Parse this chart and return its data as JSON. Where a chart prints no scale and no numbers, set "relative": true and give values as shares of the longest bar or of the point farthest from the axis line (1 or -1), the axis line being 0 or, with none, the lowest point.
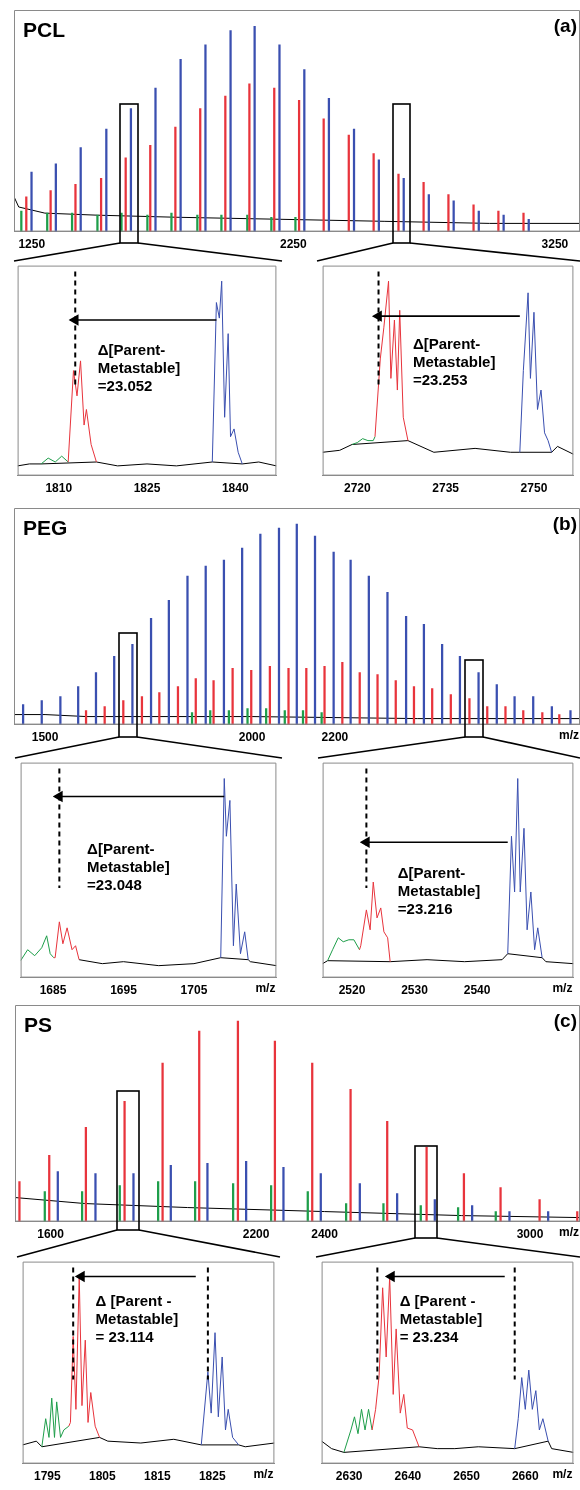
{
  "chart_data": [
    {
      "type": "bar",
      "relative": true,
      "title": "PCL",
      "annotations": [
        "(a)"
      ],
      "xlim": [
        1182,
        3346
      ],
      "xticks": [
        1250,
        2250,
        3250
      ],
      "series": [
        {
          "type": "bar",
          "color": "#3a4fb0",
          "x": [
            1249,
            1342,
            1437,
            1535,
            1629,
            1723,
            1819,
            1914,
            2010,
            2102,
            2197,
            2292,
            2386,
            2482,
            2577,
            2672,
            2768,
            2863,
            2959,
            3054,
            3150
          ],
          "values": [
            0.29,
            0.33,
            0.41,
            0.5,
            0.6,
            0.7,
            0.84,
            0.91,
            0.98,
            1,
            0.91,
            0.79,
            0.65,
            0.5,
            0.35,
            0.26,
            0.18,
            0.15,
            0.1,
            0.08,
            0.06
          ]
        },
        {
          "type": "bar",
          "color": "#e8343c",
          "x": [
            1229,
            1322,
            1417,
            1515,
            1609,
            1703,
            1799,
            1894,
            1990,
            2082,
            2177,
            2272,
            2366,
            2462,
            2557,
            2652,
            2748,
            2843,
            2939,
            3034,
            3130
          ],
          "values": [
            0.17,
            0.2,
            0.23,
            0.26,
            0.36,
            0.42,
            0.51,
            0.6,
            0.66,
            0.72,
            0.7,
            0.64,
            0.55,
            0.47,
            0.38,
            0.28,
            0.24,
            0.18,
            0.13,
            0.1,
            0.09
          ]
        },
        {
          "type": "bar",
          "color": "#1e9e4a",
          "x": [
            1210,
            1309,
            1404,
            1501,
            1593,
            1692,
            1784,
            1883,
            1975,
            2074,
            2166,
            2258
          ],
          "values": [
            0.1,
            0.09,
            0.09,
            0.08,
            0.09,
            0.08,
            0.09,
            0.08,
            0.08,
            0.08,
            0.07,
            0.07
          ]
        },
        {
          "type": "line",
          "color": "#000000",
          "x": [
            1182,
            1200,
            1300,
            1500,
            1800,
            2200,
            2600,
            3000,
            3346
          ],
          "values": [
            0.17,
            0.12,
            0.09,
            0.08,
            0.07,
            0.06,
            0.05,
            0.04,
            0.04
          ]
        }
      ]
    },
    {
      "type": "line",
      "relative": true,
      "xlim": [
        1803,
        1847
      ],
      "xticks": [
        1810,
        1825,
        1840
      ],
      "ref_lines": [
        {
          "axis": "x",
          "value": 1812.8,
          "line_style": "dashed"
        }
      ],
      "annotations": [
        "Δ[Parent-\nMetastable]\n=23.052"
      ],
      "series": [
        {
          "type": "line",
          "color": "#000000",
          "marker": "triangle",
          "x": [
            1836.8,
            1812.8
          ],
          "values": [
            0.8,
            0.8
          ]
        },
        {
          "color": "#3a4fb0",
          "x": [
            1836.1,
            1836.8,
            1837.3,
            1837.7,
            1838.2,
            1838.8,
            1839.2,
            1839.8,
            1840.5,
            1841.2
          ],
          "values": [
            0.07,
            0.89,
            0.81,
            1,
            0.3,
            0.73,
            0.2,
            0.24,
            0.12,
            0.06
          ]
        },
        {
          "color": "#e8343c",
          "x": [
            1811.6,
            1812.5,
            1813.1,
            1813.7,
            1814.3,
            1814.7,
            1815.5,
            1816.4
          ],
          "values": [
            0.07,
            0.54,
            0.41,
            0.59,
            0.26,
            0.34,
            0.16,
            0.07
          ]
        },
        {
          "color": "#1e9e4a",
          "x": [
            1807,
            1808.2,
            1809.4,
            1810.5,
            1811.6
          ],
          "values": [
            0.06,
            0.09,
            0.07,
            0.1,
            0.07
          ]
        },
        {
          "color": "#000000",
          "x": [
            1803,
            1805,
            1807,
            1816.4,
            1820,
            1825,
            1830,
            1836.1,
            1841.2,
            1844,
            1847
          ],
          "values": [
            0.05,
            0.06,
            0.06,
            0.07,
            0.05,
            0.06,
            0.05,
            0.07,
            0.06,
            0.07,
            0.05
          ]
        }
      ]
    },
    {
      "type": "line",
      "relative": true,
      "xlim": [
        2714.1,
        2756.7
      ],
      "xticks": [
        2720,
        2735,
        2750
      ],
      "ref_lines": [
        {
          "axis": "x",
          "value": 2723.6,
          "line_style": "dashed"
        }
      ],
      "annotations": [
        "Δ[Parent-\nMetastable]\n=23.253"
      ],
      "series": [
        {
          "type": "line",
          "color": "#000000",
          "marker": "triangle",
          "x": [
            2747.6,
            2723.6
          ],
          "values": [
            0.82,
            0.82
          ]
        },
        {
          "color": "#3a4fb0",
          "x": [
            2747.6,
            2748.2,
            2749,
            2749.4,
            2750,
            2750.6,
            2751.2,
            2751.8,
            2752.4,
            2753
          ],
          "values": [
            0.12,
            0.54,
            0.94,
            0.5,
            0.84,
            0.34,
            0.44,
            0.22,
            0.18,
            0.12
          ]
        },
        {
          "color": "#e8343c",
          "x": [
            2723,
            2723.9,
            2724.5,
            2725.3,
            2725.7,
            2726.3,
            2726.8,
            2727.2,
            2727.8,
            2728.6
          ],
          "values": [
            0.2,
            0.6,
            0.76,
            1,
            0.5,
            0.8,
            0.44,
            0.85,
            0.3,
            0.18
          ]
        },
        {
          "color": "#1e9e4a",
          "x": [
            2719.1,
            2720,
            2720.9,
            2721.8,
            2722.7,
            2723
          ],
          "values": [
            0.16,
            0.17,
            0.19,
            0.18,
            0.18,
            0.2
          ]
        },
        {
          "color": "#000000",
          "x": [
            2714.1,
            2717,
            2719.1,
            2728.6,
            2733,
            2740,
            2746,
            2747.6,
            2753,
            2754,
            2756.7
          ],
          "values": [
            0.12,
            0.13,
            0.16,
            0.18,
            0.12,
            0.14,
            0.12,
            0.12,
            0.12,
            0.15,
            0.11
          ]
        }
      ]
    },
    {
      "type": "bar",
      "relative": true,
      "title": "PEG",
      "annotations": [
        "(b)"
      ],
      "xlabel": "m/z",
      "xlim": [
        1425,
        2792
      ],
      "xticks": [
        1500,
        2000,
        2200
      ],
      "series": [
        {
          "type": "bar",
          "color": "#3a4fb0",
          "x": [
            1447,
            1492,
            1537,
            1580,
            1623,
            1667,
            1711,
            1756,
            1799,
            1844,
            1888,
            1932,
            1976,
            2020,
            2065,
            2108,
            2152,
            2197,
            2238,
            2282,
            2327,
            2372,
            2415,
            2459,
            2502,
            2547,
            2591,
            2634,
            2679,
            2724,
            2769
          ],
          "values": [
            0.1,
            0.12,
            0.14,
            0.19,
            0.26,
            0.34,
            0.4,
            0.53,
            0.62,
            0.74,
            0.79,
            0.82,
            0.88,
            0.95,
            0.98,
            1,
            0.94,
            0.86,
            0.82,
            0.74,
            0.66,
            0.54,
            0.5,
            0.4,
            0.34,
            0.26,
            0.2,
            0.14,
            0.14,
            0.09,
            0.07
          ]
        },
        {
          "type": "bar",
          "color": "#e8343c",
          "x": [
            1599,
            1644,
            1689,
            1734,
            1776,
            1821,
            1864,
            1907,
            1953,
            1998,
            2043,
            2088,
            2131,
            2175,
            2218,
            2260,
            2303,
            2347,
            2391,
            2435,
            2480,
            2525,
            2568,
            2612,
            2655,
            2701,
            2742
          ],
          "values": [
            0.07,
            0.09,
            0.12,
            0.14,
            0.16,
            0.19,
            0.23,
            0.22,
            0.28,
            0.27,
            0.29,
            0.28,
            0.28,
            0.29,
            0.31,
            0.26,
            0.25,
            0.22,
            0.19,
            0.18,
            0.15,
            0.13,
            0.09,
            0.09,
            0.07,
            0.06,
            0.05
          ]
        },
        {
          "type": "bar",
          "color": "#1e9e4a",
          "x": [
            1855,
            1899,
            1944,
            1989,
            2034,
            2079,
            2123,
            2168
          ],
          "values": [
            0.06,
            0.07,
            0.07,
            0.08,
            0.08,
            0.07,
            0.07,
            0.06
          ]
        },
        {
          "type": "line",
          "color": "#000000",
          "x": [
            1425,
            1500,
            1600,
            1800,
            2000,
            2400,
            2792
          ],
          "values": [
            0.05,
            0.05,
            0.04,
            0.04,
            0.04,
            0.03,
            0.03
          ]
        }
      ]
    },
    {
      "type": "line",
      "relative": true,
      "xlabel": "m/z",
      "xlim": [
        1680.4,
        1716.7
      ],
      "xticks": [
        1685,
        1695,
        1705
      ],
      "ref_lines": [
        {
          "axis": "x",
          "value": 1685.9,
          "line_style": "dashed"
        }
      ],
      "annotations": [
        "Δ[Parent-\nMetastable]\n=23.048"
      ],
      "series": [
        {
          "type": "line",
          "color": "#000000",
          "marker": "triangle",
          "x": [
            1709.3,
            1685.9
          ],
          "values": [
            0.91,
            0.91
          ]
        },
        {
          "color": "#3a4fb0",
          "x": [
            1708.8,
            1709.3,
            1709.6,
            1710.1,
            1710.6,
            1711,
            1711.6,
            1712.2,
            1712.7
          ],
          "values": [
            0.1,
            1,
            0.71,
            0.89,
            0.16,
            0.47,
            0.12,
            0.23,
            0.09
          ]
        },
        {
          "color": "#e8343c",
          "x": [
            1685.1,
            1685.3,
            1685.9,
            1686.4,
            1687,
            1687.7,
            1688.2,
            1688.7
          ],
          "values": [
            0.1,
            0.1,
            0.28,
            0.17,
            0.25,
            0.14,
            0.16,
            0.09
          ]
        },
        {
          "color": "#1e9e4a",
          "x": [
            1680.4,
            1681.4,
            1682.4,
            1683.4,
            1684.1,
            1684.6,
            1685.1
          ],
          "values": [
            0.085,
            0.14,
            0.11,
            0.15,
            0.21,
            0.12,
            0.1
          ]
        },
        {
          "color": "#000000",
          "x": [
            1688.7,
            1692,
            1695,
            1700,
            1705,
            1708.8,
            1712.7,
            1713,
            1716.7
          ],
          "values": [
            0.09,
            0.07,
            0.08,
            0.06,
            0.07,
            0.1,
            0.09,
            0.08,
            0.06
          ]
        }
      ]
    },
    {
      "type": "line",
      "relative": true,
      "xlabel": "m/z",
      "xlim": [
        2515.3,
        2555.4
      ],
      "xticks": [
        2520,
        2530,
        2540
      ],
      "ref_lines": [
        {
          "axis": "x",
          "value": 2522.3,
          "line_style": "dashed"
        }
      ],
      "annotations": [
        "Δ[Parent-\nMetastable]\n=23.216"
      ],
      "series": [
        {
          "type": "line",
          "color": "#000000",
          "marker": "triangle",
          "x": [
            2544.9,
            2522.3
          ],
          "values": [
            0.68,
            0.68
          ]
        },
        {
          "color": "#3a4fb0",
          "x": [
            2544.9,
            2545.5,
            2546,
            2546.5,
            2546.9,
            2547.5,
            2548,
            2548.6,
            2549.2,
            2549.7,
            2550.4
          ],
          "values": [
            0.12,
            0.71,
            0.43,
            1,
            0.43,
            0.75,
            0.24,
            0.43,
            0.14,
            0.25,
            0.1
          ]
        },
        {
          "color": "#e8343c",
          "x": [
            2521.2,
            2521.4,
            2522.3,
            2522.9,
            2523.4,
            2524,
            2524.6,
            2525.1,
            2525.7,
            2526.1
          ],
          "values": [
            0.14,
            0.16,
            0.34,
            0.24,
            0.48,
            0.3,
            0.35,
            0.23,
            0.2,
            0.08
          ]
        },
        {
          "color": "#1e9e4a",
          "x": [
            2516.1,
            2516.9,
            2517.8,
            2518.6,
            2519.5,
            2520.3,
            2521.2
          ],
          "values": [
            0.085,
            0.14,
            0.2,
            0.18,
            0.19,
            0.19,
            0.14
          ]
        },
        {
          "color": "#000000",
          "x": [
            2515.3,
            2516.1,
            2526.1,
            2532,
            2538,
            2544,
            2544.9,
            2550.4,
            2551,
            2555.4
          ],
          "values": [
            0.07,
            0.085,
            0.08,
            0.09,
            0.08,
            0.09,
            0.12,
            0.1,
            0.08,
            0.07
          ]
        }
      ]
    },
    {
      "type": "bar",
      "relative": true,
      "title": "PS",
      "annotations": [
        "(c)"
      ],
      "xlabel": "m/z",
      "xlim": [
        1496,
        3146
      ],
      "xticks": [
        1600,
        2200,
        2400,
        3000
      ],
      "series": [
        {
          "type": "bar",
          "color": "#e8343c",
          "x": [
            1509,
            1596,
            1703,
            1816,
            1927,
            2034,
            2147,
            2255,
            2364,
            2476,
            2583,
            2698,
            2807,
            2914,
            3028,
            3138
          ],
          "values": [
            0.2,
            0.33,
            0.47,
            0.6,
            0.79,
            0.95,
            1,
            0.9,
            0.79,
            0.66,
            0.5,
            0.37,
            0.24,
            0.17,
            0.11,
            0.05
          ]
        },
        {
          "type": "bar",
          "color": "#3a4fb0",
          "x": [
            1621,
            1731,
            1842,
            1951,
            2058,
            2171,
            2280,
            2389,
            2503,
            2612,
            2722,
            2831,
            2940,
            3053
          ],
          "values": [
            0.25,
            0.24,
            0.24,
            0.28,
            0.29,
            0.3,
            0.27,
            0.24,
            0.19,
            0.14,
            0.11,
            0.08,
            0.05,
            0.05
          ]
        },
        {
          "type": "bar",
          "color": "#1e9e4a",
          "x": [
            1583,
            1692,
            1802,
            1914,
            2022,
            2133,
            2244,
            2351,
            2463,
            2572,
            2681,
            2790,
            2900
          ],
          "values": [
            0.15,
            0.15,
            0.18,
            0.2,
            0.2,
            0.19,
            0.18,
            0.15,
            0.09,
            0.09,
            0.08,
            0.07,
            0.05
          ]
        },
        {
          "type": "line",
          "color": "#000000",
          "x": [
            1496,
            1700,
            2000,
            2400,
            2800,
            3146
          ],
          "values": [
            0.12,
            0.09,
            0.07,
            0.05,
            0.03,
            0.02
          ]
        }
      ]
    },
    {
      "type": "line",
      "relative": true,
      "xlabel": "m/z",
      "xlim": [
        1790.5,
        1836.3
      ],
      "xticks": [
        1795,
        1805,
        1815,
        1825
      ],
      "ref_lines": [
        {
          "axis": "x",
          "value": 1799.7,
          "line_style": "dashed"
        },
        {
          "axis": "x",
          "value": 1824.2,
          "line_style": "dashed"
        }
      ],
      "annotations": [
        "Δ [Parent -\nMetastable]\n= 23.114"
      ],
      "series": [
        {
          "type": "line",
          "color": "#000000",
          "marker": "triangle",
          "x": [
            1822,
            1801.2
          ],
          "values": [
            1,
            1
          ]
        },
        {
          "color": "#3a4fb0",
          "x": [
            1823,
            1824.2,
            1824.8,
            1825.5,
            1826.1,
            1826.8,
            1827.4,
            1827.9,
            1828.7,
            1829.8
          ],
          "values": [
            0.1,
            0.49,
            0.27,
            0.7,
            0.25,
            0.57,
            0.18,
            0.29,
            0.14,
            0.1
          ]
        },
        {
          "color": "#e8343c",
          "x": [
            1798.9,
            1799.2,
            1799.7,
            1800.2,
            1800.8,
            1801.3,
            1801.9,
            1802.4,
            1802.9,
            1803.7,
            1804.5
          ],
          "values": [
            0.2,
            0.22,
            0.68,
            0.29,
            1,
            0.31,
            0.66,
            0.22,
            0.38,
            0.2,
            0.14
          ]
        },
        {
          "color": "#1e9e4a",
          "x": [
            1794,
            1794.7,
            1795.3,
            1795.8,
            1796.3,
            1796.7,
            1797.4,
            1798,
            1798.9
          ],
          "values": [
            0.09,
            0.24,
            0.14,
            0.35,
            0.14,
            0.33,
            0.14,
            0.18,
            0.2
          ]
        },
        {
          "color": "#000000",
          "x": [
            1790.5,
            1793,
            1794,
            1804.5,
            1806,
            1812,
            1818,
            1823,
            1829.8,
            1831,
            1836.3
          ],
          "values": [
            0.1,
            0.12,
            0.09,
            0.14,
            0.12,
            0.11,
            0.13,
            0.1,
            0.1,
            0.09,
            0.11
          ]
        }
      ]
    },
    {
      "type": "line",
      "relative": true,
      "xlabel": "m/z",
      "xlim": [
        2625.3,
        2668.2
      ],
      "xticks": [
        2630,
        2640,
        2650,
        2660
      ],
      "ref_lines": [
        {
          "axis": "x",
          "value": 2634.8,
          "line_style": "dashed"
        },
        {
          "axis": "x",
          "value": 2658.2,
          "line_style": "dashed"
        }
      ],
      "annotations": [
        "Δ [Parent -\nMetastable]\n= 23.234"
      ],
      "series": [
        {
          "type": "line",
          "color": "#000000",
          "marker": "triangle",
          "x": [
            2656.5,
            2637.2
          ],
          "values": [
            1,
            1
          ]
        },
        {
          "color": "#3a4fb0",
          "x": [
            2658.2,
            2658.8,
            2659.4,
            2660,
            2660.6,
            2661.2,
            2661.8,
            2662.4,
            2663,
            2663.9
          ],
          "values": [
            0.08,
            0.24,
            0.46,
            0.29,
            0.5,
            0.29,
            0.39,
            0.18,
            0.24,
            0.12
          ]
        },
        {
          "color": "#e8343c",
          "x": [
            2633.9,
            2634.5,
            2635.1,
            2635.7,
            2636.3,
            2636.9,
            2637.5,
            2638,
            2638.7,
            2639.3,
            2639.9,
            2640.8,
            2641.9
          ],
          "values": [
            0.18,
            0.29,
            0.47,
            0.94,
            0.57,
            1,
            0.37,
            0.72,
            0.27,
            0.37,
            0.19,
            0.18,
            0.09
          ]
        },
        {
          "color": "#1e9e4a",
          "x": [
            2629.1,
            2630.3,
            2630.9,
            2631.5,
            2632.1,
            2632.7,
            2633.3,
            2633.9
          ],
          "values": [
            0.06,
            0.18,
            0.25,
            0.16,
            0.29,
            0.18,
            0.29,
            0.18
          ]
        },
        {
          "color": "#000000",
          "x": [
            2625.3,
            2627,
            2629.1,
            2641.9,
            2645,
            2648,
            2652,
            2658.2,
            2663.9,
            2664.5,
            2668.2
          ],
          "values": [
            0.12,
            0.08,
            0.06,
            0.09,
            0.08,
            0.08,
            0.09,
            0.08,
            0.12,
            0.08,
            0.06
          ]
        }
      ]
    }
  ]
}
